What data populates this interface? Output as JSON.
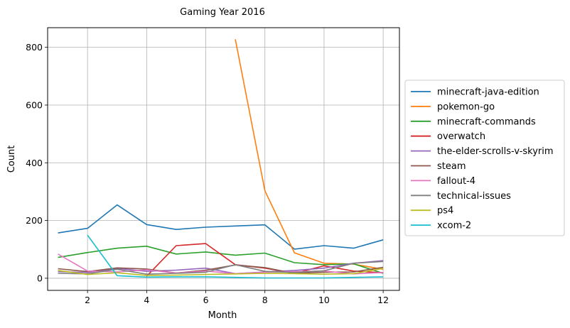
{
  "chart_data": {
    "type": "line",
    "title": "Gaming Year 2016",
    "xlabel": "Month",
    "ylabel": "Count",
    "xlim": [
      0.65,
      12.55
    ],
    "ylim": [
      -42,
      868
    ],
    "xticks": [
      2,
      4,
      6,
      8,
      10,
      12
    ],
    "yticks": [
      0,
      200,
      400,
      600,
      800
    ],
    "grid": true,
    "legend_position": "outside-right",
    "series": [
      {
        "name": "minecraft-java-edition",
        "color": "#1f77b4",
        "x": [
          1,
          2,
          3,
          4,
          5,
          6,
          7,
          8,
          9,
          10,
          11,
          12
        ],
        "values": [
          157,
          173,
          254,
          186,
          169,
          177,
          181,
          185,
          101,
          113,
          104,
          133
        ]
      },
      {
        "name": "pokemon-go",
        "color": "#ff7f0e",
        "x": [
          7,
          8,
          9,
          10,
          11,
          12
        ],
        "values": [
          828,
          303,
          88,
          52,
          49,
          31
        ]
      },
      {
        "name": "minecraft-commands",
        "color": "#2ca02c",
        "x": [
          1,
          2,
          3,
          4,
          5,
          6,
          7,
          8,
          9,
          10,
          11,
          12
        ],
        "values": [
          72,
          89,
          104,
          111,
          84,
          91,
          80,
          87,
          54,
          47,
          50,
          17
        ]
      },
      {
        "name": "overwatch",
        "color": "#d62728",
        "x": [
          4,
          5,
          6,
          7,
          8,
          9,
          10,
          11,
          12
        ],
        "values": [
          7,
          113,
          120,
          47,
          35,
          17,
          43,
          25,
          19
        ]
      },
      {
        "name": "the-elder-scrolls-v-skyrim",
        "color": "#9467bd",
        "x": [
          1,
          2,
          3,
          4,
          5,
          6,
          7,
          8,
          9,
          10,
          11,
          12
        ],
        "values": [
          23,
          20,
          34,
          24,
          28,
          35,
          16,
          22,
          27,
          35,
          52,
          61
        ]
      },
      {
        "name": "steam",
        "color": "#8c564b",
        "x": [
          1,
          2,
          3,
          4,
          5,
          6,
          7,
          8,
          9,
          10,
          11,
          12
        ],
        "values": [
          33,
          23,
          36,
          32,
          18,
          28,
          46,
          37,
          17,
          21,
          22,
          38
        ]
      },
      {
        "name": "fallout-4",
        "color": "#e377c2",
        "x": [
          1,
          2,
          3,
          4,
          5,
          6,
          7,
          8,
          9,
          10,
          11,
          12
        ],
        "values": [
          84,
          25,
          22,
          29,
          18,
          25,
          16,
          21,
          23,
          25,
          15,
          20
        ]
      },
      {
        "name": "technical-issues",
        "color": "#7f7f7f",
        "x": [
          1,
          2,
          3,
          4,
          5,
          6,
          7,
          8,
          9,
          10,
          11,
          12
        ],
        "values": [
          17,
          15,
          31,
          14,
          17,
          21,
          47,
          24,
          20,
          26,
          52,
          58
        ]
      },
      {
        "name": "ps4",
        "color": "#bcbd22",
        "x": [
          1,
          2,
          3,
          4,
          5,
          6,
          7,
          8,
          9,
          10,
          11,
          12
        ],
        "values": [
          27,
          13,
          19,
          10,
          11,
          13,
          15,
          17,
          16,
          14,
          16,
          34
        ]
      },
      {
        "name": "xcom-2",
        "color": "#17becf",
        "x": [
          2,
          3,
          4,
          5,
          6,
          7,
          8,
          9,
          10,
          11,
          12
        ],
        "values": [
          149,
          9,
          4,
          5,
          5,
          3,
          1,
          1,
          1,
          3,
          5
        ]
      }
    ]
  }
}
